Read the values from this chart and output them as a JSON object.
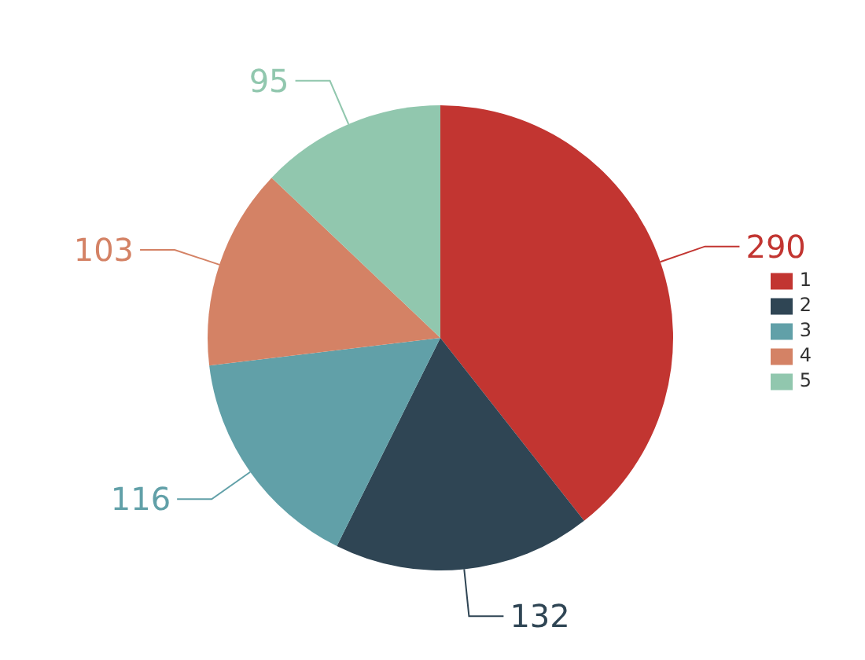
{
  "chart_data": {
    "type": "pie",
    "categories": [
      "1",
      "2",
      "3",
      "4",
      "5"
    ],
    "values": [
      290,
      132,
      116,
      103,
      95
    ],
    "colors": [
      "#c23531",
      "#2f4554",
      "#61a0a8",
      "#d48265",
      "#91c7ae"
    ],
    "data_labels": true,
    "legend": "right"
  }
}
